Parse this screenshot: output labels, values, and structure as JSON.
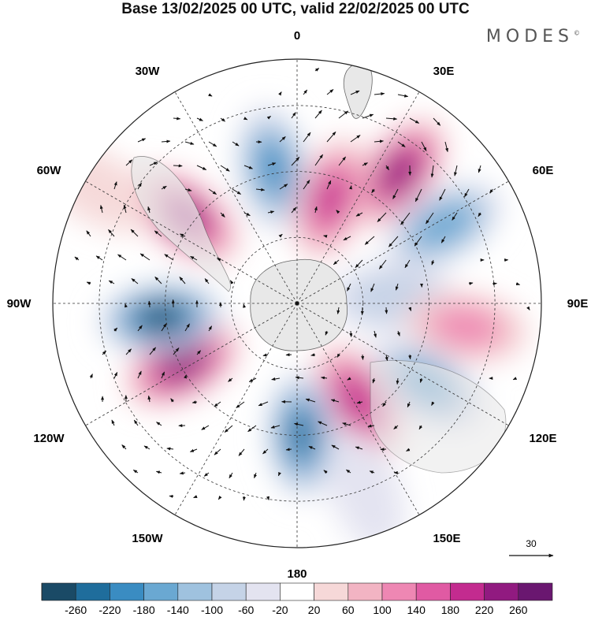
{
  "map": {
    "title": "Base 13/02/2025 00 UTC, valid 22/02/2025 00 UTC",
    "logo": "MODES",
    "logo_mark": "©",
    "projection": "south polar stereographic",
    "longitude_labels": {
      "top": "0",
      "bottom": "180",
      "left": "90W",
      "right": "90E",
      "upper_left_1": "30W",
      "upper_left_2": "60W",
      "upper_right_1": "30E",
      "upper_right_2": "60E",
      "lower_left_1": "120W",
      "lower_left_2": "150W",
      "lower_right_1": "120E",
      "lower_right_2": "150E"
    },
    "vector_reference": {
      "label": "30",
      "value": 30
    },
    "anomaly_centers": [
      {
        "lon_deg": -10,
        "radius_frac": 0.56,
        "value": -200
      },
      {
        "lon_deg": 38,
        "radius_frac": 0.68,
        "value": 260
      },
      {
        "lon_deg": 18,
        "radius_frac": 0.45,
        "value": 200
      },
      {
        "lon_deg": 62,
        "radius_frac": 0.68,
        "value": -190
      },
      {
        "lon_deg": 86,
        "radius_frac": 0.39,
        "value": -110
      },
      {
        "lon_deg": 98,
        "radius_frac": 0.7,
        "value": 120
      },
      {
        "lon_deg": 122,
        "radius_frac": 0.62,
        "value": -170
      },
      {
        "lon_deg": 148,
        "radius_frac": 0.47,
        "value": 230
      },
      {
        "lon_deg": 178,
        "radius_frac": 0.54,
        "value": -240
      },
      {
        "lon_deg": -118,
        "radius_frac": 0.53,
        "value": 270
      },
      {
        "lon_deg": -96,
        "radius_frac": 0.56,
        "value": -280
      },
      {
        "lon_deg": -52,
        "radius_frac": 0.58,
        "value": 250
      },
      {
        "lon_deg": -60,
        "radius_frac": 0.94,
        "value": 40
      },
      {
        "lon_deg": 160,
        "radius_frac": 0.82,
        "value": -70
      }
    ],
    "colorbar": {
      "ticks": [
        "-260",
        "-220",
        "-180",
        "-140",
        "-100",
        "-60",
        "-20",
        "20",
        "60",
        "100",
        "140",
        "180",
        "220",
        "260"
      ],
      "colors": [
        "#1a4a66",
        "#1f6d9c",
        "#3a8cc2",
        "#6aa8d2",
        "#9fc2df",
        "#c5d3e7",
        "#e3e3f0",
        "#ffffff",
        "#f6d8d8",
        "#f2b4c3",
        "#ee87b3",
        "#e05aa3",
        "#c32b8f",
        "#911a80",
        "#6a1770"
      ]
    }
  }
}
